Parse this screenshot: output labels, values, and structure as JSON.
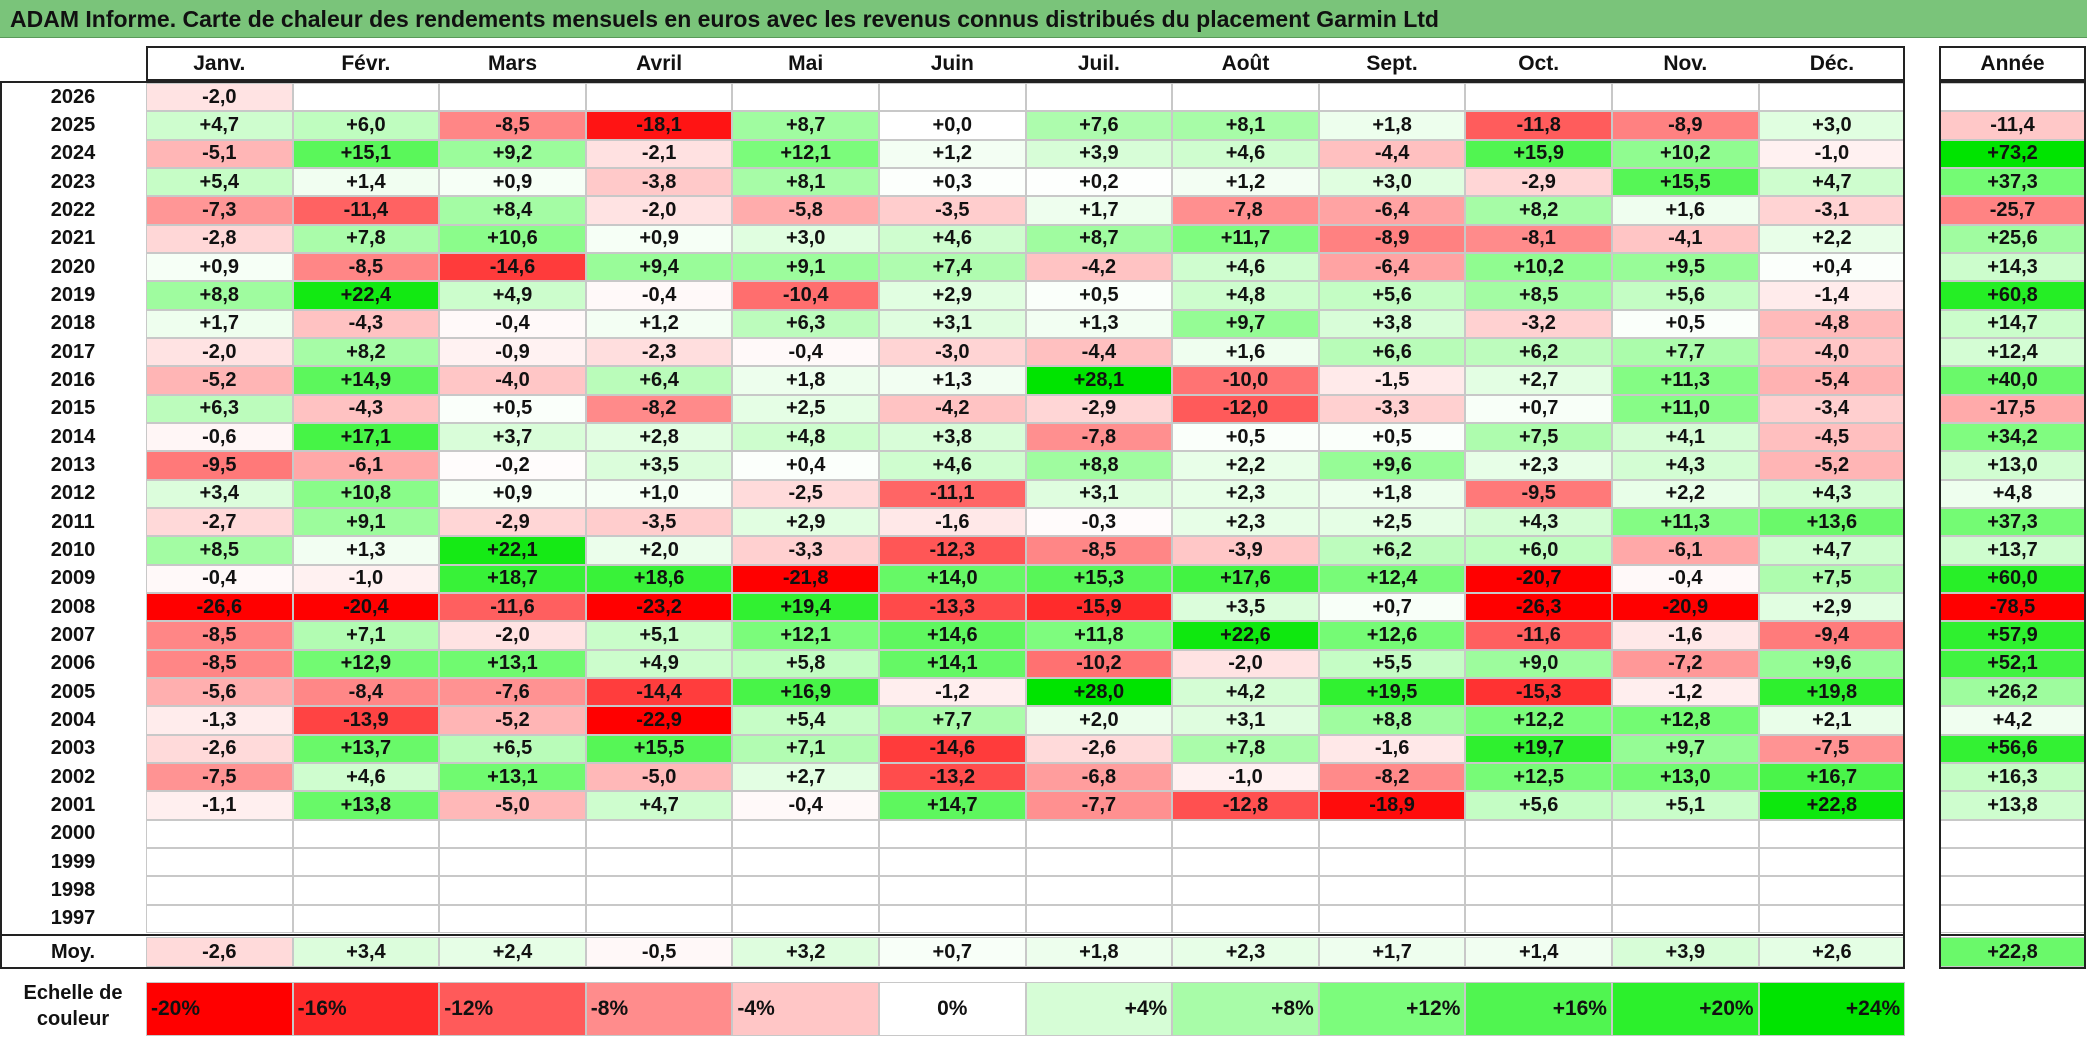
{
  "title": "ADAM Informe. Carte de chaleur des rendements mensuels en euros avec les revenus connus distribués du placement Garmin Ltd",
  "chart_data": {
    "type": "heatmap",
    "title": "ADAM Informe. Carte de chaleur des rendements mensuels en euros avec les revenus connus distribués du placement Garmin Ltd",
    "months": [
      "Janv.",
      "Févr.",
      "Mars",
      "Avril",
      "Mai",
      "Juin",
      "Juil.",
      "Août",
      "Sept.",
      "Oct.",
      "Nov.",
      "Déc."
    ],
    "annual_header": "Année",
    "average_label": "Moy.",
    "rows": [
      {
        "year": "2026",
        "values": [
          -2.0,
          null,
          null,
          null,
          null,
          null,
          null,
          null,
          null,
          null,
          null,
          null
        ],
        "annual": null
      },
      {
        "year": "2025",
        "values": [
          4.7,
          6.0,
          -8.5,
          -18.1,
          8.7,
          0.0,
          7.6,
          8.1,
          1.8,
          -11.8,
          -8.9,
          3.0
        ],
        "annual": -11.4
      },
      {
        "year": "2024",
        "values": [
          -5.1,
          15.1,
          9.2,
          -2.1,
          12.1,
          1.2,
          3.9,
          4.6,
          -4.4,
          15.9,
          10.2,
          -1.0
        ],
        "annual": 73.2
      },
      {
        "year": "2023",
        "values": [
          5.4,
          1.4,
          0.9,
          -3.8,
          8.1,
          0.3,
          0.2,
          1.2,
          3.0,
          -2.9,
          15.5,
          4.7
        ],
        "annual": 37.3
      },
      {
        "year": "2022",
        "values": [
          -7.3,
          -11.4,
          8.4,
          -2.0,
          -5.8,
          -3.5,
          1.7,
          -7.8,
          -6.4,
          8.2,
          1.6,
          -3.1
        ],
        "annual": -25.7
      },
      {
        "year": "2021",
        "values": [
          -2.8,
          7.8,
          10.6,
          0.9,
          3.0,
          4.6,
          8.7,
          11.7,
          -8.9,
          -8.1,
          -4.1,
          2.2
        ],
        "annual": 25.6
      },
      {
        "year": "2020",
        "values": [
          0.9,
          -8.5,
          -14.6,
          9.4,
          9.1,
          7.4,
          -4.2,
          4.6,
          -6.4,
          10.2,
          9.5,
          0.4
        ],
        "annual": 14.3
      },
      {
        "year": "2019",
        "values": [
          8.8,
          22.4,
          4.9,
          -0.4,
          -10.4,
          2.9,
          0.5,
          4.8,
          5.6,
          8.5,
          5.6,
          -1.4
        ],
        "annual": 60.8
      },
      {
        "year": "2018",
        "values": [
          1.7,
          -4.3,
          -0.4,
          1.2,
          6.3,
          3.1,
          1.3,
          9.7,
          3.8,
          -3.2,
          0.5,
          -4.8
        ],
        "annual": 14.7
      },
      {
        "year": "2017",
        "values": [
          -2.0,
          8.2,
          -0.9,
          -2.3,
          -0.4,
          -3.0,
          -4.4,
          1.6,
          6.6,
          6.2,
          7.7,
          -4.0
        ],
        "annual": 12.4
      },
      {
        "year": "2016",
        "values": [
          -5.2,
          14.9,
          -4.0,
          6.4,
          1.8,
          1.3,
          28.1,
          -10.0,
          -1.5,
          2.7,
          11.3,
          -5.4
        ],
        "annual": 40.0
      },
      {
        "year": "2015",
        "values": [
          6.3,
          -4.3,
          0.5,
          -8.2,
          2.5,
          -4.2,
          -2.9,
          -12.0,
          -3.3,
          0.7,
          11.0,
          -3.4
        ],
        "annual": -17.5
      },
      {
        "year": "2014",
        "values": [
          -0.6,
          17.1,
          3.7,
          2.8,
          4.8,
          3.8,
          -7.8,
          0.5,
          0.5,
          7.5,
          4.1,
          -4.5
        ],
        "annual": 34.2
      },
      {
        "year": "2013",
        "values": [
          -9.5,
          -6.1,
          -0.2,
          3.5,
          0.4,
          4.6,
          8.8,
          2.2,
          9.6,
          2.3,
          4.3,
          -5.2
        ],
        "annual": 13.0
      },
      {
        "year": "2012",
        "values": [
          3.4,
          10.8,
          0.9,
          1.0,
          -2.5,
          -11.1,
          3.1,
          2.3,
          1.8,
          -9.5,
          2.2,
          4.3
        ],
        "annual": 4.8
      },
      {
        "year": "2011",
        "values": [
          -2.7,
          9.1,
          -2.9,
          -3.5,
          2.9,
          -1.6,
          -0.3,
          2.3,
          2.5,
          4.3,
          11.3,
          13.6
        ],
        "annual": 37.3
      },
      {
        "year": "2010",
        "values": [
          8.5,
          1.3,
          22.1,
          2.0,
          -3.3,
          -12.3,
          -8.5,
          -3.9,
          6.2,
          6.0,
          -6.1,
          4.7
        ],
        "annual": 13.7
      },
      {
        "year": "2009",
        "values": [
          -0.4,
          -1.0,
          18.7,
          18.6,
          -21.8,
          14.0,
          15.3,
          17.6,
          12.4,
          -20.7,
          -0.4,
          7.5
        ],
        "annual": 60.0
      },
      {
        "year": "2008",
        "values": [
          -26.6,
          -20.4,
          -11.6,
          -23.2,
          19.4,
          -13.3,
          -15.9,
          3.5,
          0.7,
          -26.3,
          -20.9,
          2.9
        ],
        "annual": -78.5
      },
      {
        "year": "2007",
        "values": [
          -8.5,
          7.1,
          -2.0,
          5.1,
          12.1,
          14.6,
          11.8,
          22.6,
          12.6,
          -11.6,
          -1.6,
          -9.4
        ],
        "annual": 57.9
      },
      {
        "year": "2006",
        "values": [
          -8.5,
          12.9,
          13.1,
          4.9,
          5.8,
          14.1,
          -10.2,
          -2.0,
          5.5,
          9.0,
          -7.2,
          9.6
        ],
        "annual": 52.1
      },
      {
        "year": "2005",
        "values": [
          -5.6,
          -8.4,
          -7.6,
          -14.4,
          16.9,
          -1.2,
          28.0,
          4.2,
          19.5,
          -15.3,
          -1.2,
          19.8
        ],
        "annual": 26.2
      },
      {
        "year": "2004",
        "values": [
          -1.3,
          -13.9,
          -5.2,
          -22.9,
          5.4,
          7.7,
          2.0,
          3.1,
          8.8,
          12.2,
          12.8,
          2.1
        ],
        "annual": 4.2
      },
      {
        "year": "2003",
        "values": [
          -2.6,
          13.7,
          6.5,
          15.5,
          7.1,
          -14.6,
          -2.6,
          7.8,
          -1.6,
          19.7,
          9.7,
          -7.5
        ],
        "annual": 56.6
      },
      {
        "year": "2002",
        "values": [
          -7.5,
          4.6,
          13.1,
          -5.0,
          2.7,
          -13.2,
          -6.8,
          -1.0,
          -8.2,
          12.5,
          13.0,
          16.7
        ],
        "annual": 16.3
      },
      {
        "year": "2001",
        "values": [
          -1.1,
          13.8,
          -5.0,
          4.7,
          -0.4,
          14.7,
          -7.7,
          -12.8,
          -18.9,
          5.6,
          5.1,
          22.8
        ],
        "annual": 13.8
      },
      {
        "year": "2000",
        "values": [
          null,
          null,
          null,
          null,
          null,
          null,
          null,
          null,
          null,
          null,
          null,
          null
        ],
        "annual": null
      },
      {
        "year": "1999",
        "values": [
          null,
          null,
          null,
          null,
          null,
          null,
          null,
          null,
          null,
          null,
          null,
          null
        ],
        "annual": null
      },
      {
        "year": "1998",
        "values": [
          null,
          null,
          null,
          null,
          null,
          null,
          null,
          null,
          null,
          null,
          null,
          null
        ],
        "annual": null
      },
      {
        "year": "1997",
        "values": [
          null,
          null,
          null,
          null,
          null,
          null,
          null,
          null,
          null,
          null,
          null,
          null
        ],
        "annual": null
      }
    ],
    "averages": {
      "values": [
        -2.6,
        3.4,
        2.4,
        -0.5,
        3.2,
        0.7,
        1.8,
        2.3,
        1.7,
        1.4,
        3.9,
        2.6
      ],
      "annual": 22.8
    },
    "color_scale": {
      "label": "Echelle de couleur",
      "stops": [
        {
          "label": "-20%",
          "value": -20,
          "color": "#ff0000"
        },
        {
          "label": "-16%",
          "value": -16,
          "color": "#ff2a2a"
        },
        {
          "label": "-12%",
          "value": -12,
          "color": "#ff5a5a"
        },
        {
          "label": "-8%",
          "value": -8,
          "color": "#ff8c8c"
        },
        {
          "label": "-4%",
          "value": -4,
          "color": "#ffc6c6"
        },
        {
          "label": "0%",
          "value": 0,
          "color": "#ffffff"
        },
        {
          "label": "+4%",
          "value": 4,
          "color": "#d6fdd6"
        },
        {
          "label": "+8%",
          "value": 8,
          "color": "#a8fca8"
        },
        {
          "label": "+12%",
          "value": 12,
          "color": "#7cfc7c"
        },
        {
          "label": "+16%",
          "value": 16,
          "color": "#50f550"
        },
        {
          "label": "+20%",
          "value": 20,
          "color": "#2cf02c"
        },
        {
          "label": "+24%",
          "value": 24,
          "color": "#00e400"
        }
      ]
    }
  }
}
